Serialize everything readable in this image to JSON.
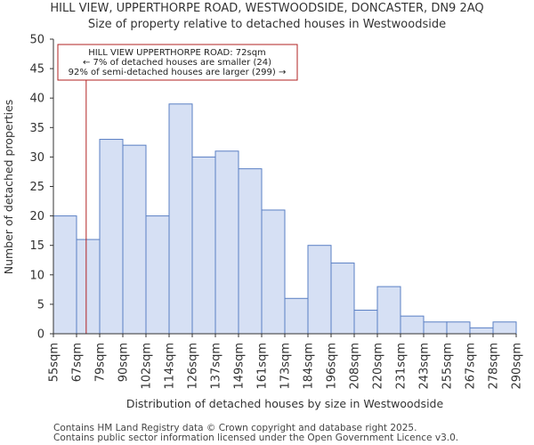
{
  "chart_data": {
    "type": "bar",
    "title": "HILL VIEW, UPPERTHORPE ROAD, WESTWOODSIDE, DONCASTER, DN9 2AQ",
    "subtitle": "Size of property relative to detached houses in Westwoodside",
    "xlabel": "Distribution of detached houses by size in Westwoodside",
    "ylabel": "Number of detached properties",
    "ylim": [
      0,
      50
    ],
    "yticks": [
      "0",
      "5",
      "10",
      "15",
      "20",
      "25",
      "30",
      "35",
      "40",
      "45",
      "50"
    ],
    "bin_edges": [
      "55sqm",
      "67sqm",
      "79sqm",
      "90sqm",
      "102sqm",
      "114sqm",
      "126sqm",
      "137sqm",
      "149sqm",
      "161sqm",
      "173sqm",
      "184sqm",
      "196sqm",
      "208sqm",
      "220sqm",
      "231sqm",
      "243sqm",
      "255sqm",
      "267sqm",
      "278sqm",
      "290sqm"
    ],
    "values": [
      20,
      16,
      33,
      32,
      20,
      39,
      30,
      31,
      28,
      21,
      6,
      15,
      12,
      4,
      8,
      3,
      2,
      2,
      1,
      2
    ],
    "marker": {
      "value_sqm": 72,
      "color": "#b22222",
      "label_lines": [
        "HILL VIEW UPPERTHORPE ROAD: 72sqm",
        "← 7% of detached houses are smaller (24)",
        "92% of semi-detached houses are larger (299) →"
      ]
    },
    "colors": {
      "bar_fill": "#d6e0f4",
      "bar_stroke": "#5a7fc4",
      "axis": "#333333"
    }
  },
  "footer": {
    "line1": "Contains HM Land Registry data © Crown copyright and database right 2025.",
    "line2": "Contains public sector information licensed under the Open Government Licence v3.0."
  }
}
